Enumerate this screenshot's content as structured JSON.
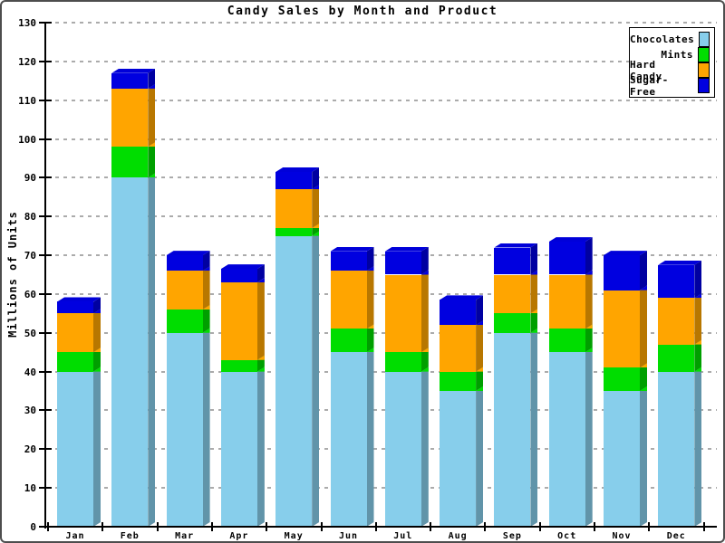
{
  "window": {
    "background": "#ffffff",
    "border_color": "#4d4d4d"
  },
  "chart_data": {
    "type": "bar",
    "stacked": true,
    "title": "Candy Sales by Month and Product",
    "xlabel": "",
    "ylabel": "Millions of Units",
    "categories": [
      "Jan",
      "Feb",
      "Mar",
      "Apr",
      "May",
      "Jun",
      "Jul",
      "Aug",
      "Sep",
      "Oct",
      "Nov",
      "Dec"
    ],
    "series": [
      {
        "name": "Chocolates",
        "color": "#87CEEB",
        "values": [
          40,
          90,
          50,
          40,
          75,
          45,
          40,
          35,
          50,
          45,
          35,
          40
        ]
      },
      {
        "name": "Mints",
        "color": "#00DD00",
        "values": [
          5,
          8,
          6,
          3,
          2,
          6,
          5,
          5,
          5,
          6,
          6,
          7
        ]
      },
      {
        "name": "Hard Candy",
        "color": "#FFA500",
        "values": [
          10,
          15,
          10,
          20,
          10,
          15,
          20,
          12,
          10,
          14,
          20,
          12
        ]
      },
      {
        "name": "Sugar-Free",
        "color": "#0000E0",
        "values": [
          3,
          4,
          4,
          3.5,
          4.5,
          5,
          6,
          6.5,
          7,
          8.5,
          9,
          8.5
        ]
      }
    ],
    "ylim": [
      0,
      130
    ],
    "ytick_step": 10,
    "grid": "horizontal-dashed",
    "grid_color": "#ababab",
    "axis_color": "#000000",
    "legend_position": "top-right"
  }
}
